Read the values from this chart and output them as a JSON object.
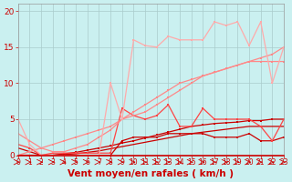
{
  "background_color": "#caf0f0",
  "grid_color": "#aacccc",
  "xlabel": "Vent moyen/en rafales ( km/h )",
  "xlabel_color": "#cc0000",
  "xlabel_fontsize": 7.5,
  "tick_color": "#cc0000",
  "ylim": [
    0,
    21
  ],
  "xlim": [
    0,
    23
  ],
  "yticks": [
    0,
    5,
    10,
    15,
    20
  ],
  "xticks": [
    0,
    1,
    2,
    3,
    4,
    5,
    6,
    7,
    8,
    9,
    10,
    11,
    12,
    13,
    14,
    15,
    16,
    17,
    18,
    19,
    20,
    21,
    22,
    23
  ],
  "c_very_light": "#ffaaaa",
  "c_light": "#ff8888",
  "c_medium": "#ff4444",
  "c_dark": "#cc0000",
  "jagged_top": [
    5,
    1.5,
    0,
    0,
    0,
    0,
    0,
    0,
    10,
    5,
    16,
    15.2,
    15,
    16.5,
    16,
    16,
    16,
    18.5,
    18,
    18.5,
    15.2,
    18.5,
    10,
    15
  ],
  "trend_upper": [
    3,
    2,
    1,
    0.5,
    0.5,
    1,
    1.5,
    2.5,
    3.5,
    5,
    6,
    7,
    8,
    9,
    10,
    10.5,
    11,
    11.5,
    12,
    12.5,
    13,
    13,
    13,
    13
  ],
  "jagged_mid": [
    1.5,
    1,
    0,
    0.3,
    0.3,
    0.3,
    0.3,
    0.3,
    0.3,
    6.5,
    5.5,
    5,
    5.5,
    7,
    4,
    4,
    6.5,
    5,
    5,
    5,
    5,
    4,
    2,
    5
  ],
  "trend_med": [
    0,
    0.5,
    1,
    1.5,
    2,
    2.5,
    3,
    3.5,
    4,
    5,
    5.5,
    6,
    7,
    8,
    9,
    10,
    11,
    11.5,
    12,
    12.5,
    13,
    13.5,
    14,
    15
  ],
  "jagged_low": [
    1,
    0.5,
    0,
    0,
    0,
    0,
    0,
    0,
    0,
    2,
    2.5,
    2.5,
    2.5,
    3,
    3,
    3,
    3,
    2.5,
    2.5,
    2.5,
    3,
    2,
    2,
    2.5
  ],
  "trend_dark1": [
    0,
    0,
    0,
    0,
    0.2,
    0.4,
    0.7,
    1,
    1.3,
    1.7,
    2,
    2.4,
    2.8,
    3.2,
    3.6,
    4,
    4.2,
    4.4,
    4.5,
    4.6,
    4.8,
    4.8,
    5,
    5
  ],
  "trend_dark2": [
    0,
    0,
    0,
    0,
    0.1,
    0.2,
    0.4,
    0.6,
    0.9,
    1.2,
    1.5,
    1.8,
    2.1,
    2.4,
    2.7,
    3,
    3.2,
    3.4,
    3.6,
    3.8,
    4,
    4,
    4,
    4
  ]
}
